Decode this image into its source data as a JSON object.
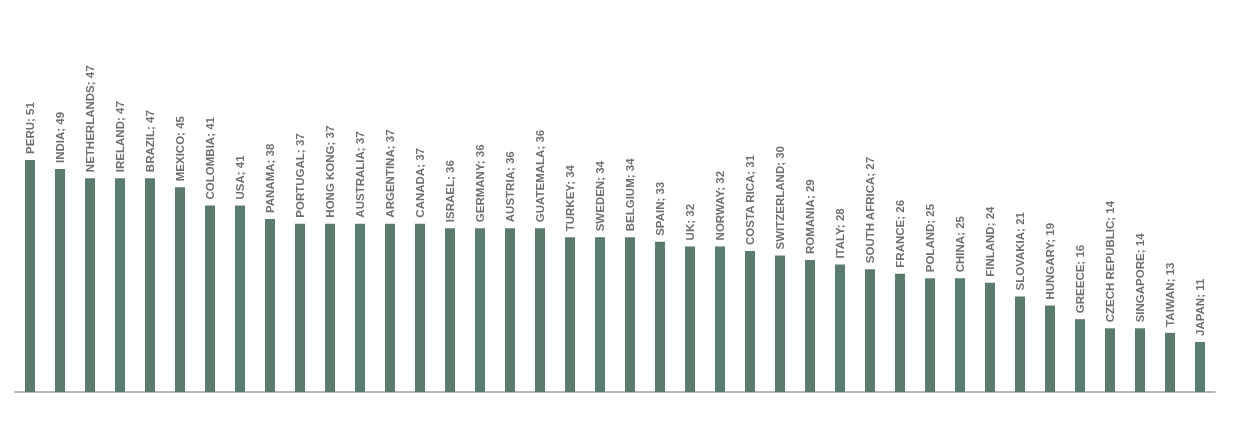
{
  "chart_data": {
    "type": "bar",
    "categories": [
      null,
      null,
      null,
      null,
      null,
      null,
      null,
      null,
      null,
      null,
      null,
      null,
      null,
      null,
      null,
      null,
      null,
      null,
      null,
      null,
      null,
      null,
      null,
      null,
      null,
      null,
      null,
      null,
      null,
      null,
      null,
      null,
      null,
      null,
      null,
      null,
      null,
      null,
      null,
      null
    ],
    "values": [
      51,
      49,
      47,
      47,
      47,
      45,
      41,
      41,
      38,
      37,
      37,
      37,
      37,
      37,
      36,
      36,
      36,
      36,
      34,
      34,
      34,
      33,
      32,
      32,
      31,
      30,
      29,
      28,
      27,
      26,
      25,
      25,
      24,
      21,
      19,
      16,
      14,
      14,
      13,
      11
    ],
    "value_labels": [
      "PERU; 51",
      "INDIA; 49",
      "NETHERLANDS; 47",
      "IRELAND; 47",
      "BRAZIL; 47",
      "MEXICO; 45",
      "COLOMBIA; 41",
      "USA; 41",
      "PANAMA; 38",
      "PORTUGAL; 37",
      "HONG KONG; 37",
      "AUSTRALIA; 37",
      "ARGENTINA; 37",
      "CANADA; 37",
      "ISRAEL; 36",
      "GERMANY; 36",
      "AUSTRIA; 36",
      "GUATEMALA; 36",
      "TURKEY; 34",
      "SWEDEN; 34",
      "BELGIUM; 34",
      "SPAIN; 33",
      "UK; 32",
      "NORWAY; 32",
      "COSTA RICA; 31",
      "SWITZERLAND; 30",
      "ROMANIA; 29",
      "ITALY; 28",
      "SOUTH AFRICA; 27",
      "FRANCE; 26",
      "POLAND; 25",
      "CHINA; 25",
      "FINLAND; 24",
      "SLOVAKIA; 21",
      "HUNGARY; 19",
      "GREECE; 16",
      "CZECH REPUBLIC; 14",
      "SINGAPORE; 14",
      "TAIWAN; 13",
      "JAPAN; 11"
    ],
    "color": "#5b7b6c",
    "tick_labels": false
  }
}
